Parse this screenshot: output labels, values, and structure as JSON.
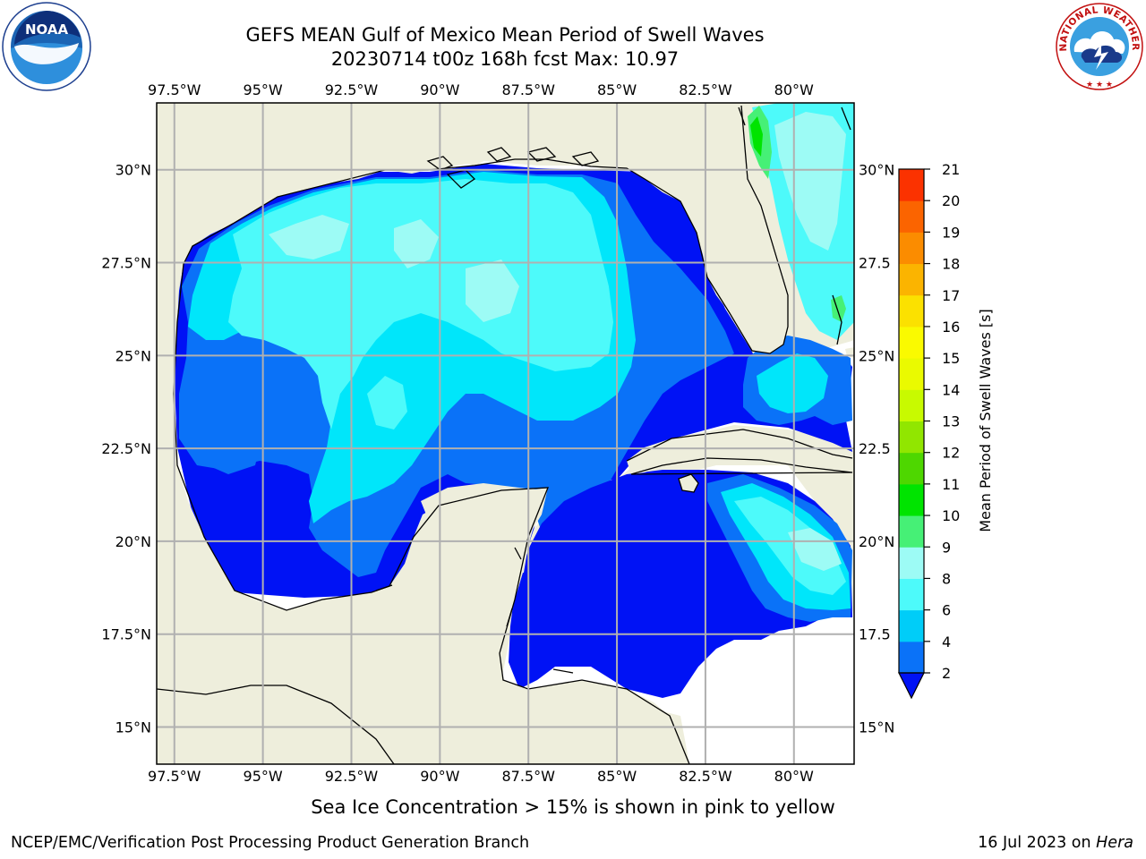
{
  "header": {
    "title_line1": "GEFS MEAN Gulf of Mexico Mean Period of Swell Waves",
    "title_line2": "20230714 t00z 168h fcst   Max: 10.97"
  },
  "logos": {
    "left": "noaa-logo",
    "left_text": "NOAA",
    "right": "nws-logo",
    "right_text": "NATIONAL WEATHER SERVICE"
  },
  "map": {
    "lon_labels": [
      "97.5°W",
      "95°W",
      "92.5°W",
      "90°W",
      "87.5°W",
      "85°W",
      "82.5°W",
      "80°W"
    ],
    "lat_labels_left": [
      "30°N",
      "27.5°N",
      "25°N",
      "22.5°N",
      "20°N",
      "17.5°N",
      "15°N"
    ],
    "lat_labels_right": [
      "30°N",
      "27.5",
      "25°N",
      "22.5",
      "20°N",
      "17.5",
      "15°N"
    ],
    "lon_values": [
      -97.5,
      -95,
      -92.5,
      -90,
      -87.5,
      -85,
      -82.5,
      -80
    ],
    "lat_values": [
      30,
      27.5,
      25,
      22.5,
      20,
      17.5,
      15
    ],
    "extent": {
      "lon_min": -98,
      "lon_max": -78.3,
      "lat_min": 14.0,
      "lat_max": 31.8
    },
    "colors": {
      "land": "#eeeedc",
      "no_data": "#ffffff",
      "grid": "#b0b0b0"
    }
  },
  "colorbar": {
    "label": "Mean Period of Swell Waves [s]",
    "levels": [
      2,
      4,
      6,
      8,
      9,
      10,
      11,
      12,
      13,
      14,
      15,
      16,
      17,
      18,
      19,
      20,
      21
    ],
    "colors": [
      "#0a72f8",
      "#00cdf8",
      "#4dfafa",
      "#9dfbf5",
      "#46f076",
      "#00e400",
      "#4ed700",
      "#91e600",
      "#c8fa00",
      "#eafa00",
      "#fafa00",
      "#fbe100",
      "#fbb400",
      "#fb8c00",
      "#fb6400",
      "#fb3200"
    ],
    "extend_color": "#0012f5"
  },
  "field_colors": {
    "p_lt2": "#0012f5",
    "p_2_4": "#0a72f8",
    "p_4_6": "#00e6fa",
    "p_6_8": "#4dfafa",
    "p_8_9": "#9dfbf5",
    "p_9_10": "#46f076",
    "p_10_11": "#00e400"
  },
  "footer": {
    "note": "Sea Ice Concentration > 15% is shown in pink to yellow",
    "credit": "NCEP/EMC/Verification Post Processing Product Generation Branch",
    "date": "16 Jul 2023 on ",
    "system": "Hera"
  }
}
